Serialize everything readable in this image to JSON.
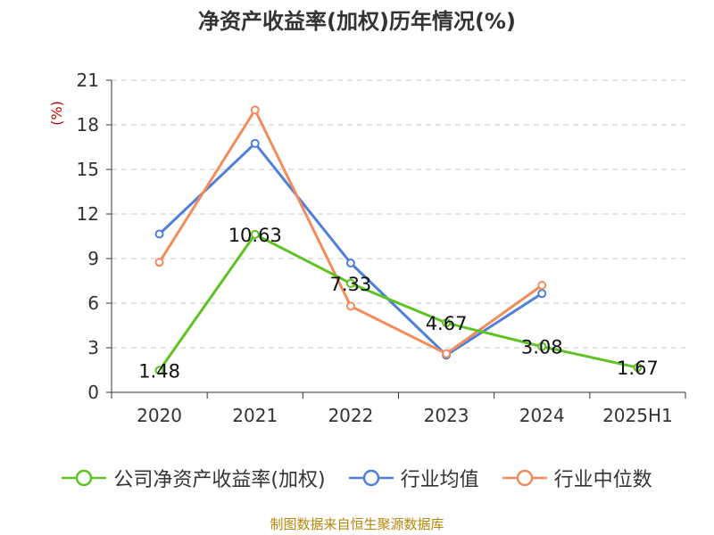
{
  "title": "净资产收益率(加权)历年情况(%)",
  "source": "制图数据来自恒生聚源数据库",
  "chart_data": {
    "type": "line",
    "title": "净资产收益率(加权)历年情况(%)",
    "ylabel": "(%)",
    "xlabel": "",
    "categories": [
      "2020",
      "2021",
      "2022",
      "2023",
      "2024",
      "2025H1"
    ],
    "ylim": [
      0,
      21
    ],
    "yticks": [
      0,
      3,
      6,
      9,
      12,
      15,
      18,
      21
    ],
    "grid": true,
    "legend_position": "bottom",
    "series": [
      {
        "name": "公司净资产收益率(加权)",
        "color": "#5ec321",
        "values": [
          1.48,
          10.63,
          7.33,
          4.67,
          3.08,
          1.67
        ],
        "labels": [
          "1.48",
          "10.63",
          "7.33",
          "4.67",
          "3.08",
          "1.67"
        ]
      },
      {
        "name": "行业均值",
        "color": "#4f7fdb",
        "values": [
          10.65,
          16.75,
          8.7,
          2.5,
          6.65,
          null
        ]
      },
      {
        "name": "行业中位数",
        "color": "#f28c5b",
        "values": [
          8.75,
          19.0,
          5.8,
          2.6,
          7.2,
          null
        ]
      }
    ]
  }
}
